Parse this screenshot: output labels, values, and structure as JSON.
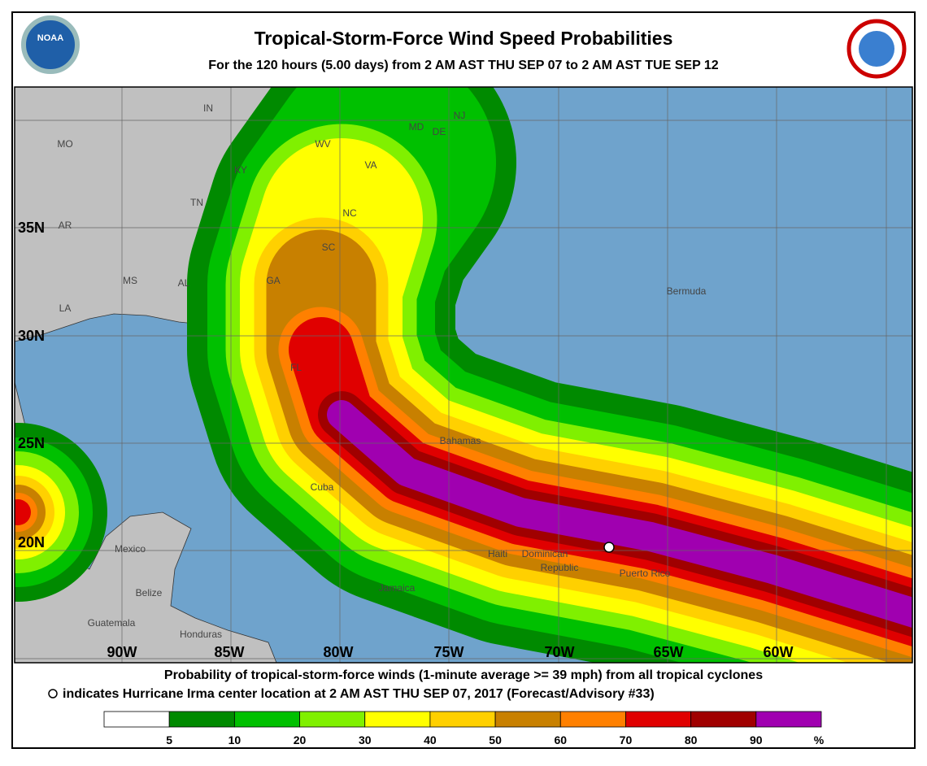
{
  "header": {
    "title": "Tropical-Storm-Force Wind Speed Probabilities",
    "subtitle": "For the 120 hours (5.00 days) from 2 AM AST THU SEP 07 to 2 AM AST TUE SEP 12",
    "logo": "NOAA"
  },
  "map": {
    "places": [
      "IN",
      "MO",
      "KY",
      "WV",
      "VA",
      "MD",
      "DE",
      "NJ",
      "TN",
      "AR",
      "NC",
      "SC",
      "GA",
      "MS",
      "AL",
      "LA",
      "FL",
      "Bermuda",
      "Bahamas",
      "Cuba",
      "Mexico",
      "Haiti",
      "Dominican",
      "Republic",
      "Puerto Rico",
      "Jamaica",
      "Belize",
      "Guatemala",
      "Honduras"
    ],
    "latitudes": [
      "35N",
      "30N",
      "25N",
      "20N"
    ],
    "longitudes": [
      "90W",
      "85W",
      "80W",
      "75W",
      "70W",
      "65W",
      "60W"
    ]
  },
  "footer": {
    "lines": [
      "Probability of tropical-storm-force winds (1-minute average >= 39 mph) from all tropical cyclones",
      "indicates Hurricane Irma center location at 2 AM AST THU SEP 07, 2017 (Forecast/Advisory #33)"
    ]
  },
  "legend": {
    "colors": [
      "#ffffff",
      "#008a00",
      "#00c000",
      "#80f000",
      "#ffff00",
      "#ffd000",
      "#c88000",
      "#ff8000",
      "#e00000",
      "#a00000",
      "#a000b0"
    ],
    "ticks": [
      5,
      10,
      20,
      30,
      40,
      50,
      60,
      70,
      80,
      90
    ],
    "unit": "%"
  }
}
